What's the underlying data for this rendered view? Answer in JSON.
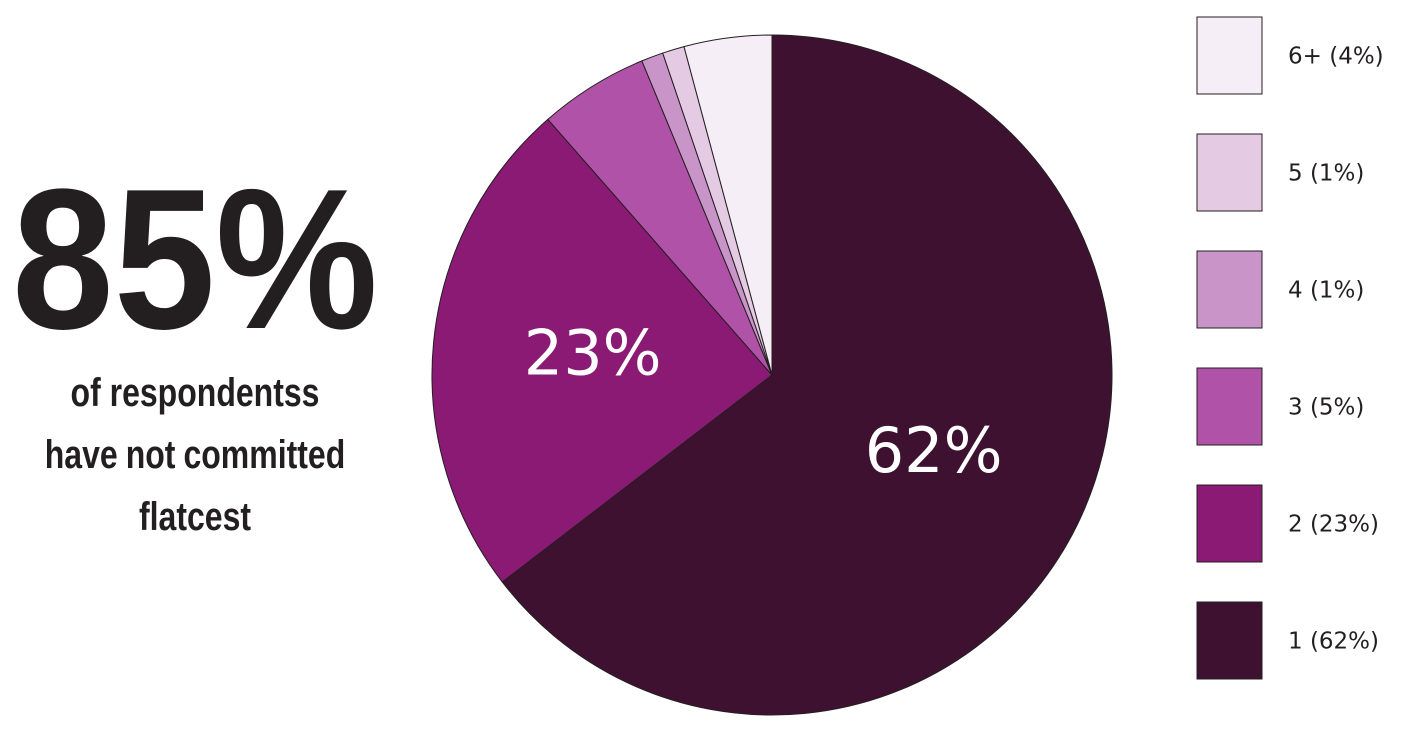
{
  "chart_data": {
    "type": "pie",
    "categories": [
      "1 (62%)",
      "2 (23%)",
      "3 (5%)",
      "4 (1%)",
      "5 (1%)",
      "6+ (4%)"
    ],
    "values": [
      62,
      23,
      5,
      1,
      1,
      4
    ],
    "value_labels": [
      "62%",
      "23%",
      null,
      null,
      null,
      null
    ],
    "colors": [
      "#3f1130",
      "#8b1a74",
      "#b052a7",
      "#c994c7",
      "#e5cae3",
      "#f6eef6"
    ],
    "legend_position": "right",
    "annotation": {
      "headline": "85%",
      "lines": [
        [
          {
            "text": "of respondentss"
          }
        ],
        [
          {
            "text": "have"
          },
          {
            "text": "not",
            "bold": true
          },
          {
            "text": "committed"
          }
        ],
        [
          {
            "text": "flatcest"
          }
        ]
      ]
    }
  }
}
